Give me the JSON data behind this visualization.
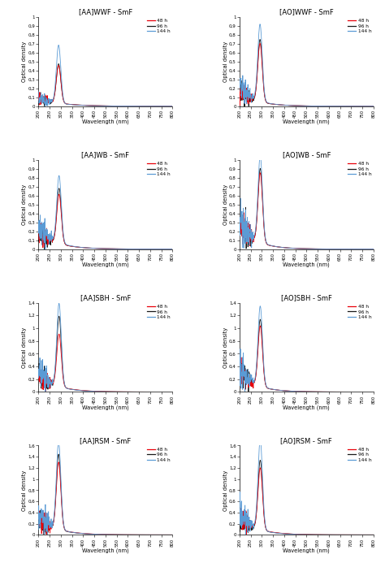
{
  "subplots": [
    {
      "title": "[AA]WWF - SmF",
      "ylim": [
        0,
        1.0
      ],
      "yticks": [
        0,
        0.1,
        0.2,
        0.3,
        0.4,
        0.5,
        0.6,
        0.7,
        0.8,
        0.9,
        1
      ],
      "ytick_labels": [
        "0",
        "0,1",
        "0,2",
        "0,3",
        "0,4",
        "0,5",
        "0,6",
        "0,7",
        "0,8",
        "0,9",
        "1"
      ],
      "peak48": 0.42,
      "peak96": 0.44,
      "peak144": 0.65,
      "peak_wl": 290,
      "noise48": 0.1,
      "noise96": 0.09,
      "noise144": 0.1,
      "decay48": 90,
      "decay96": 95,
      "decay144": 85
    },
    {
      "title": "[AO]WWF - SmF",
      "ylim": [
        0,
        1.0
      ],
      "yticks": [
        0,
        0.1,
        0.2,
        0.3,
        0.4,
        0.5,
        0.6,
        0.7,
        0.8,
        0.9,
        1
      ],
      "ytick_labels": [
        "0",
        "0,1",
        "0,2",
        "0,3",
        "0,4",
        "0,5",
        "0,6",
        "0,7",
        "0,8",
        "0,9",
        "1"
      ],
      "peak48": 0.65,
      "peak96": 0.7,
      "peak144": 0.86,
      "peak_wl": 292,
      "noise48": 0.18,
      "noise96": 0.15,
      "noise144": 0.22,
      "decay48": 75,
      "decay96": 80,
      "decay144": 70
    },
    {
      "title": "[AA]WB - SmF",
      "ylim": [
        0,
        1.0
      ],
      "yticks": [
        0,
        0.1,
        0.2,
        0.3,
        0.4,
        0.5,
        0.6,
        0.7,
        0.8,
        0.9,
        1
      ],
      "ytick_labels": [
        "0",
        "0,1",
        "0,2",
        "0,3",
        "0,4",
        "0,5",
        "0,6",
        "0,7",
        "0,8",
        "0,9",
        "1"
      ],
      "peak48": 0.55,
      "peak96": 0.62,
      "peak144": 0.75,
      "peak_wl": 292,
      "noise48": 0.2,
      "noise96": 0.18,
      "noise144": 0.25,
      "decay48": 80,
      "decay96": 85,
      "decay144": 75
    },
    {
      "title": "[AO]WB - SmF",
      "ylim": [
        0,
        1.0
      ],
      "yticks": [
        0,
        0.1,
        0.2,
        0.3,
        0.4,
        0.5,
        0.6,
        0.7,
        0.8,
        0.9,
        1
      ],
      "ytick_labels": [
        "0",
        "0,1",
        "0,2",
        "0,3",
        "0,4",
        "0,5",
        "0,6",
        "0,7",
        "0,8",
        "0,9",
        "1"
      ],
      "peak48": 0.78,
      "peak96": 0.83,
      "peak144": 0.96,
      "peak_wl": 293,
      "noise48": 0.28,
      "noise96": 0.25,
      "noise144": 0.35,
      "decay48": 70,
      "decay96": 75,
      "decay144": 65
    },
    {
      "title": "[AA]SBH - SmF",
      "ylim": [
        0,
        1.4
      ],
      "yticks": [
        0,
        0.2,
        0.4,
        0.6,
        0.8,
        1.0,
        1.2,
        1.4
      ],
      "ytick_labels": [
        "0",
        "0,2",
        "0,4",
        "0,6",
        "0,8",
        "1",
        "1,2",
        "1,4"
      ],
      "peak48": 0.82,
      "peak96": 1.1,
      "peak144": 1.3,
      "peak_wl": 292,
      "noise48": 0.28,
      "noise96": 0.3,
      "noise144": 0.33,
      "decay48": 80,
      "decay96": 75,
      "decay144": 70
    },
    {
      "title": "[AO]SBH - SmF",
      "ylim": [
        0,
        1.4
      ],
      "yticks": [
        0,
        0.2,
        0.4,
        0.6,
        0.8,
        1.0,
        1.2,
        1.4
      ],
      "ytick_labels": [
        "0",
        "0,2",
        "0,4",
        "0,6",
        "0,8",
        "1",
        "1,2",
        "1,4"
      ],
      "peak48": 0.95,
      "peak96": 1.05,
      "peak144": 1.25,
      "peak_wl": 293,
      "noise48": 0.3,
      "noise96": 0.32,
      "noise144": 0.38,
      "decay48": 75,
      "decay96": 72,
      "decay144": 68
    },
    {
      "title": "[AA]RSM - SmF",
      "ylim": [
        0,
        1.6
      ],
      "yticks": [
        0,
        0.2,
        0.4,
        0.6,
        0.8,
        1.0,
        1.2,
        1.4,
        1.6
      ],
      "ytick_labels": [
        "0",
        "0,2",
        "0,4",
        "0,6",
        "0,8",
        "1",
        "1,2",
        "1,4",
        "1,6"
      ],
      "peak48": 1.2,
      "peak96": 1.35,
      "peak144": 1.55,
      "peak_wl": 290,
      "noise48": 0.32,
      "noise96": 0.3,
      "noise144": 0.38,
      "decay48": 80,
      "decay96": 78,
      "decay144": 72
    },
    {
      "title": "[AO]RSM - SmF",
      "ylim": [
        0,
        1.6
      ],
      "yticks": [
        0,
        0.2,
        0.4,
        0.6,
        0.8,
        1.0,
        1.2,
        1.4,
        1.6
      ],
      "ytick_labels": [
        "0",
        "0,2",
        "0,4",
        "0,6",
        "0,8",
        "1",
        "1,2",
        "1,4",
        "1,6"
      ],
      "peak48": 1.1,
      "peak96": 1.25,
      "peak144": 1.6,
      "peak_wl": 293,
      "noise48": 0.35,
      "noise96": 0.28,
      "noise144": 0.42,
      "decay48": 75,
      "decay96": 80,
      "decay144": 65
    }
  ],
  "colors": {
    "48h": "#e8000a",
    "96h": "#1a1a1a",
    "144h": "#5b9bd5"
  },
  "xlabel": "Wavelength (nm)",
  "ylabel": "Optical density",
  "legend_labels": [
    "48 h",
    "96 h",
    "144 h"
  ]
}
